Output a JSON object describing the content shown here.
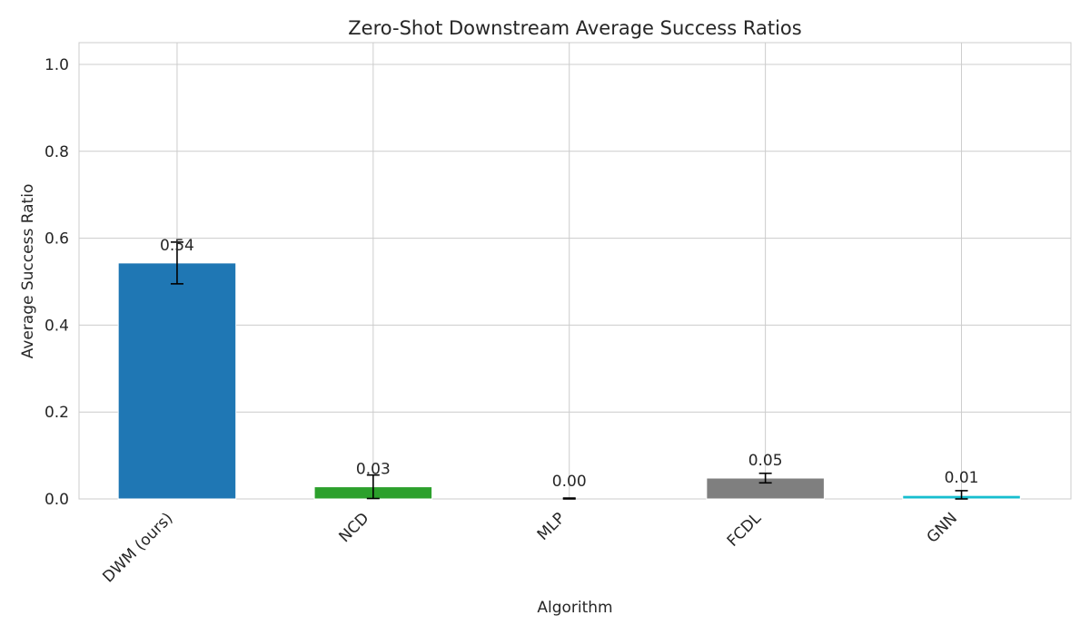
{
  "chart_data": {
    "type": "bar",
    "title": "Zero-Shot Downstream Average Success Ratios",
    "xlabel": "Algorithm",
    "ylabel": "Average Success Ratio",
    "categories": [
      "DWM (ours)",
      "NCD",
      "MLP",
      "FCDL",
      "GNN"
    ],
    "values": [
      0.543,
      0.028,
      0.0,
      0.048,
      0.008
    ],
    "errors": [
      0.048,
      0.027,
      0.002,
      0.011,
      0.011
    ],
    "value_labels": [
      "0.54",
      "0.03",
      "0.00",
      "0.05",
      "0.01"
    ],
    "colors": [
      "#1f77b4",
      "#2ca02c",
      "#9467bd",
      "#7f7f7f",
      "#17becf"
    ],
    "ylim": [
      0,
      1.05
    ],
    "yticks": [
      0.0,
      0.2,
      0.4,
      0.6,
      0.8,
      1.0
    ],
    "ytick_labels": [
      "0.0",
      "0.2",
      "0.4",
      "0.6",
      "0.8",
      "1.0"
    ],
    "grid": true,
    "style": "whitegrid"
  }
}
